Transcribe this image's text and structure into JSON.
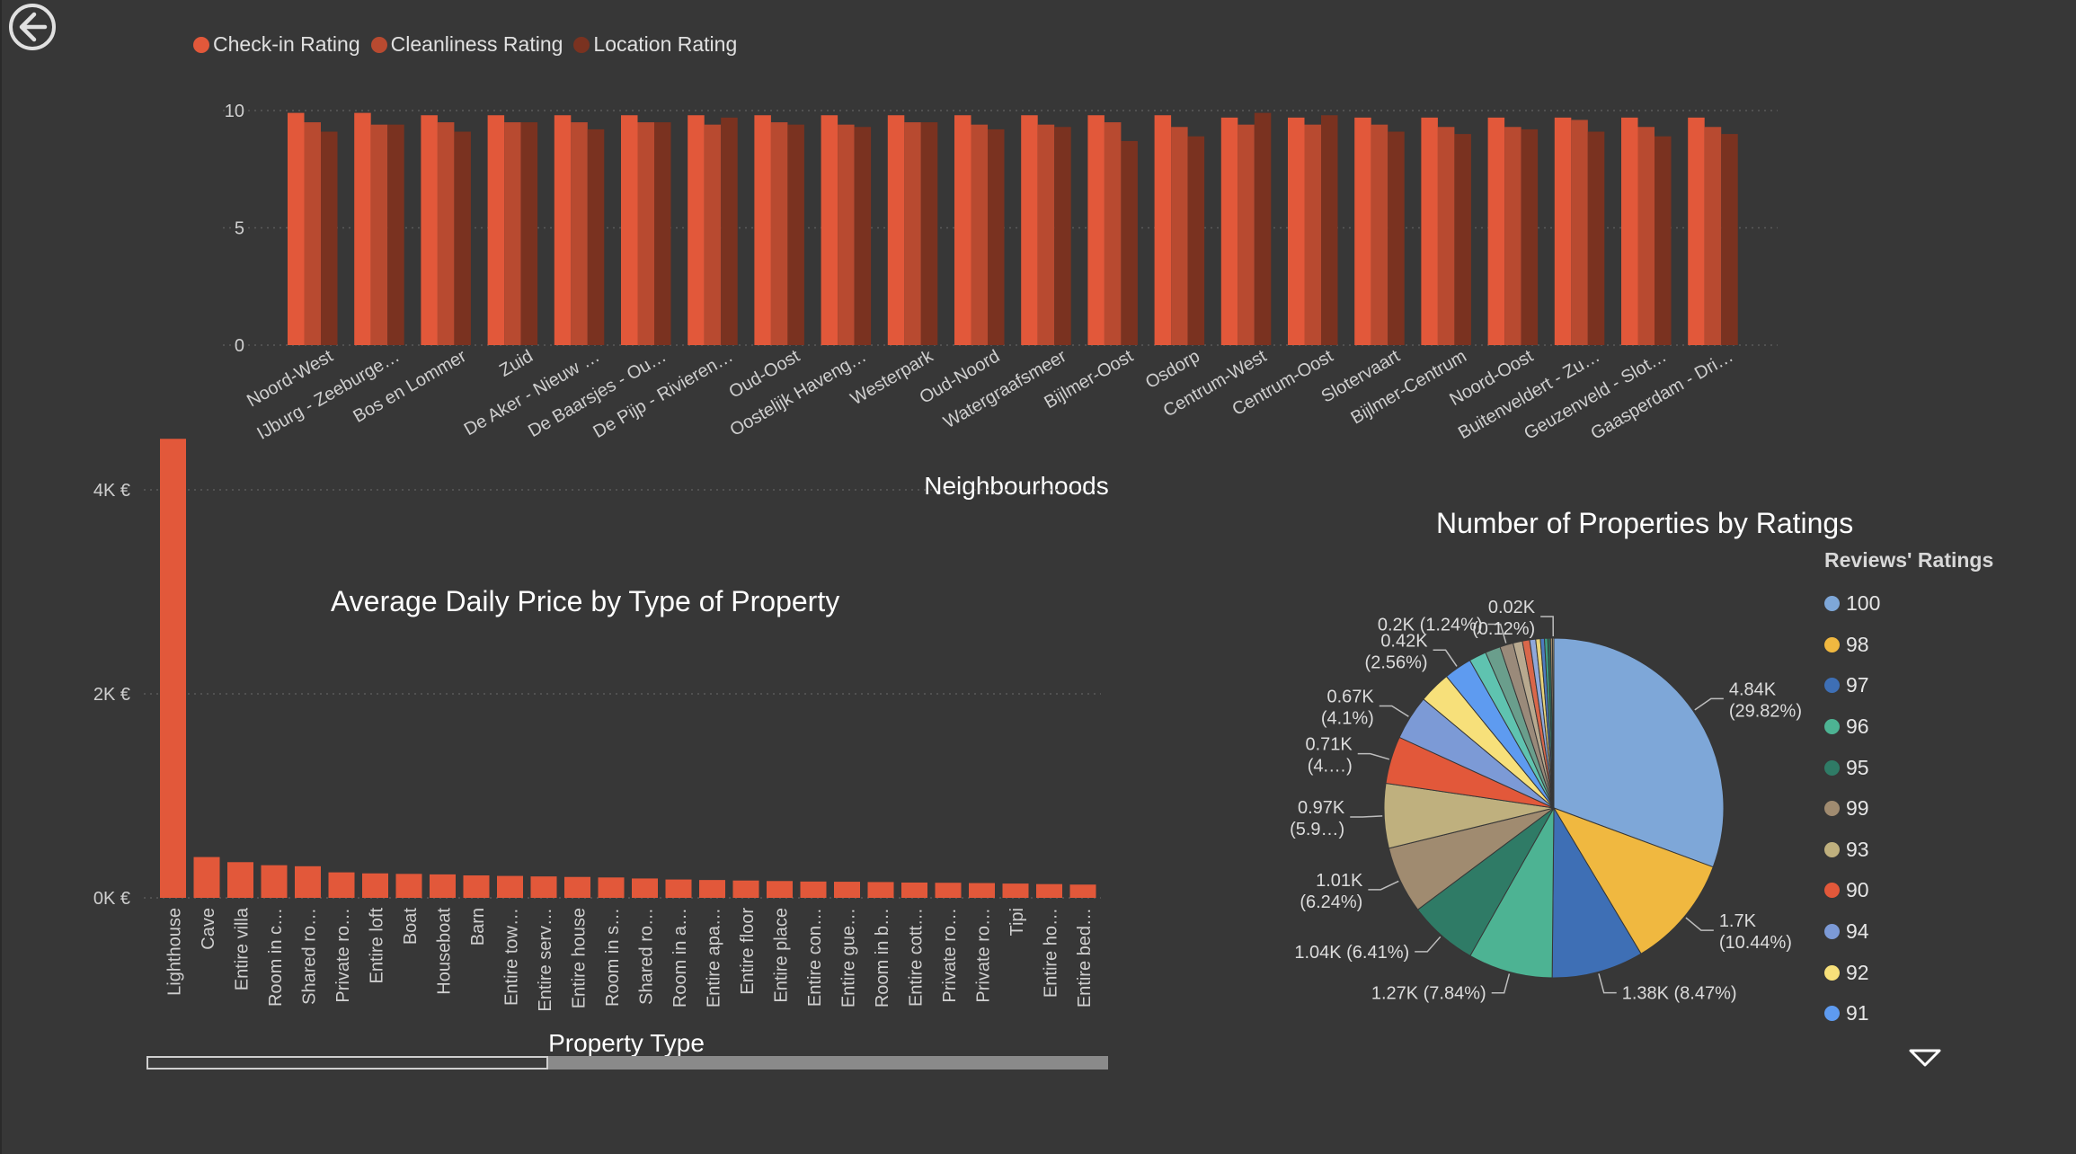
{
  "colors": {
    "background": "#373737",
    "checkin": "#E2583A",
    "cleanliness": "#B84A30",
    "location": "#7A3220",
    "price_bar": "#E2583A",
    "axis_text": "#cfcfcf",
    "grid": "#5a5a5a"
  },
  "nav": {
    "back_icon": "back-arrow-icon",
    "more_icon": "chevron-down-icon"
  },
  "chart_data": [
    {
      "type": "bar",
      "title": "",
      "xlabel": "Neighbourhoods",
      "ylabel": "",
      "ylim": [
        0,
        10
      ],
      "yticks": [
        "0",
        "5",
        "10"
      ],
      "legend_position": "top-left",
      "grid": true,
      "categories": [
        "Noord-West",
        "IJburg - Zeeburge…",
        "Bos en Lommer",
        "Zuid",
        "De Aker - Nieuw …",
        "De Baarsjes - Ou…",
        "De Pijp - Rivieren…",
        "Oud-Oost",
        "Oostelijk Haveng…",
        "Westerpark",
        "Oud-Noord",
        "Watergraafsmeer",
        "Bijlmer-Oost",
        "Osdorp",
        "Centrum-West",
        "Centrum-Oost",
        "Slotervaart",
        "Bijlmer-Centrum",
        "Noord-Oost",
        "Buitenveldert - Zu…",
        "Geuzenveld - Slot…",
        "Gaasperdam - Dri…"
      ],
      "series": [
        {
          "name": "Check-in Rating",
          "values": [
            9.9,
            9.9,
            9.8,
            9.8,
            9.8,
            9.8,
            9.8,
            9.8,
            9.8,
            9.8,
            9.8,
            9.8,
            9.8,
            9.8,
            9.7,
            9.7,
            9.7,
            9.7,
            9.7,
            9.7,
            9.7,
            9.7
          ]
        },
        {
          "name": "Cleanliness Rating",
          "values": [
            9.5,
            9.4,
            9.5,
            9.5,
            9.5,
            9.5,
            9.4,
            9.5,
            9.4,
            9.5,
            9.4,
            9.4,
            9.5,
            9.3,
            9.4,
            9.4,
            9.4,
            9.3,
            9.3,
            9.6,
            9.3,
            9.3
          ]
        },
        {
          "name": "Location Rating",
          "values": [
            9.1,
            9.4,
            9.1,
            9.5,
            9.2,
            9.5,
            9.7,
            9.4,
            9.3,
            9.5,
            9.2,
            9.3,
            8.7,
            8.9,
            9.9,
            9.8,
            9.1,
            9.0,
            9.2,
            9.1,
            8.9,
            9.0
          ]
        }
      ]
    },
    {
      "type": "bar",
      "title": "Average Daily Price by Type of Property",
      "xlabel": "Property Type",
      "ylabel": "",
      "yticks": [
        "0K €",
        "2K €",
        "4K €"
      ],
      "ylim": [
        0,
        4700
      ],
      "grid": true,
      "categories": [
        "Lighthouse",
        "Cave",
        "Entire villa",
        "Room in c…",
        "Shared ro…",
        "Private ro…",
        "Entire loft",
        "Boat",
        "Houseboat",
        "Barn",
        "Entire tow…",
        "Entire serv…",
        "Entire house",
        "Room in s…",
        "Shared ro…",
        "Room in a…",
        "Entire apa…",
        "Entire floor",
        "Entire place",
        "Entire con…",
        "Entire gue…",
        "Room in b…",
        "Entire cott…",
        "Private ro…",
        "Private ro…",
        "Tipi",
        "Entire ho…",
        "Entire bed…"
      ],
      "values": [
        4500,
        400,
        350,
        320,
        310,
        250,
        240,
        235,
        230,
        220,
        215,
        210,
        205,
        200,
        190,
        180,
        175,
        170,
        165,
        160,
        158,
        155,
        150,
        148,
        145,
        140,
        135,
        130
      ]
    },
    {
      "type": "pie",
      "title": "Number of Properties by Ratings",
      "legend_title": "Reviews' Ratings",
      "legend_position": "right",
      "legend_visible": [
        {
          "name": "100",
          "color": "#7EA7D8"
        },
        {
          "name": "98",
          "color": "#F0B840"
        },
        {
          "name": "97",
          "color": "#3E6FB5"
        },
        {
          "name": "96",
          "color": "#4DB393"
        },
        {
          "name": "95",
          "color": "#2F7B66"
        },
        {
          "name": "99",
          "color": "#A08B70"
        },
        {
          "name": "93",
          "color": "#BFB07E"
        },
        {
          "name": "90",
          "color": "#E2583A"
        },
        {
          "name": "94",
          "color": "#7C9AD6"
        },
        {
          "name": "92",
          "color": "#F7E07A"
        },
        {
          "name": "91",
          "color": "#5E9BF0"
        }
      ],
      "slices": [
        {
          "name": "100",
          "value": 4840,
          "percent": 29.82,
          "color": "#7EA7D8",
          "label": "4.84K",
          "label2": "(29.82%)"
        },
        {
          "name": "98",
          "value": 1700,
          "percent": 10.44,
          "color": "#F0B840",
          "label": "1.7K",
          "label2": "(10.44%)"
        },
        {
          "name": "97",
          "value": 1380,
          "percent": 8.47,
          "color": "#3E6FB5",
          "label": "1.38K (8.47%)",
          "label2": ""
        },
        {
          "name": "96",
          "value": 1270,
          "percent": 7.84,
          "color": "#4DB393",
          "label": "1.27K (7.84%)",
          "label2": ""
        },
        {
          "name": "95",
          "value": 1040,
          "percent": 6.41,
          "color": "#2F7B66",
          "label": "1.04K (6.41%)",
          "label2": ""
        },
        {
          "name": "99",
          "value": 1010,
          "percent": 6.24,
          "color": "#A08B70",
          "label": "1.01K",
          "label2": "(6.24%)"
        },
        {
          "name": "93",
          "value": 970,
          "percent": 5.9,
          "color": "#BFB07E",
          "label": "0.97K",
          "label2": "(5.9…)"
        },
        {
          "name": "90",
          "value": 710,
          "percent": 4.4,
          "color": "#E2583A",
          "label": "0.71K",
          "label2": "(4.…)"
        },
        {
          "name": "94",
          "value": 670,
          "percent": 4.1,
          "color": "#7C9AD6",
          "label": "0.67K",
          "label2": "(4.1%)"
        },
        {
          "name": "92",
          "value": 480,
          "percent": 2.9,
          "color": "#F7E07A",
          "label": "",
          "label2": ""
        },
        {
          "name": "91",
          "value": 420,
          "percent": 2.56,
          "color": "#5E9BF0",
          "label": "0.42K",
          "label2": "(2.56%)"
        },
        {
          "name": "",
          "value": 260,
          "percent": 1.6,
          "color": "#5FC3B0",
          "label": "",
          "label2": ""
        },
        {
          "name": "",
          "value": 230,
          "percent": 1.4,
          "color": "#6A9E8C",
          "label": "",
          "label2": ""
        },
        {
          "name": "",
          "value": 200,
          "percent": 1.24,
          "color": "#9A8A7A",
          "label": "0.2K (1.24%)",
          "label2": ""
        },
        {
          "name": "",
          "value": 140,
          "percent": 0.86,
          "color": "#B8A98F",
          "label": "",
          "label2": ""
        },
        {
          "name": "",
          "value": 110,
          "percent": 0.7,
          "color": "#D9674A",
          "label": "",
          "label2": ""
        },
        {
          "name": "",
          "value": 90,
          "percent": 0.56,
          "color": "#8FA8DA",
          "label": "",
          "label2": ""
        },
        {
          "name": "",
          "value": 70,
          "percent": 0.43,
          "color": "#E8D37A",
          "label": "",
          "label2": ""
        },
        {
          "name": "",
          "value": 60,
          "percent": 0.37,
          "color": "#4C7BC0",
          "label": "",
          "label2": ""
        },
        {
          "name": "",
          "value": 50,
          "percent": 0.3,
          "color": "#3FA084",
          "label": "",
          "label2": ""
        },
        {
          "name": "",
          "value": 40,
          "percent": 0.25,
          "color": "#2E6E5B",
          "label": "",
          "label2": ""
        },
        {
          "name": "",
          "value": 30,
          "percent": 0.18,
          "color": "#A38C6C",
          "label": "",
          "label2": ""
        },
        {
          "name": "",
          "value": 20,
          "percent": 0.12,
          "color": "#C9B98A",
          "label": "0.02K",
          "label2": "(0.12%)"
        }
      ]
    }
  ]
}
